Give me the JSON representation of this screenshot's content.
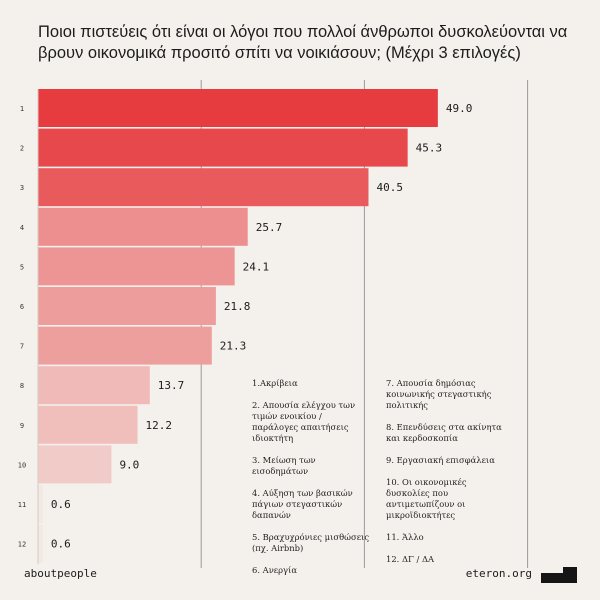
{
  "title": "Ποιοι πιστεύεις ότι είναι οι λόγοι που πολλοί άνθρωποι δυσκολεύονται να βρουν οικονομικά προσιτό σπίτι να νοικιάσουν; (Μέχρι 3 επιλογές)",
  "chart_data": {
    "type": "bar",
    "orientation": "horizontal",
    "categories": [
      "1",
      "2",
      "3",
      "4",
      "5",
      "6",
      "7",
      "8",
      "9",
      "10",
      "11",
      "12"
    ],
    "values": [
      49.0,
      45.3,
      40.5,
      25.7,
      24.1,
      21.8,
      21.3,
      13.7,
      12.2,
      9.0,
      0.6,
      0.6
    ],
    "value_labels": [
      "49.0",
      "45.3",
      "40.5",
      "25.7",
      "24.1",
      "21.8",
      "21.3",
      "13.7",
      "12.2",
      "9.0",
      "0.6",
      "0.6"
    ],
    "xlim": [
      0,
      60
    ],
    "grid": true,
    "colors": {
      "max": "#e63b3f",
      "min": "#f3e9e4"
    },
    "legend_placement": "bottom-right"
  },
  "legend": {
    "col1": [
      "1.Ακρίβεια",
      "2. Απουσία ελέγχου των τιμών ενοικίου / παράλογες απαιτήσεις ιδιοκτήτη",
      "3. Μείωση των εισοδημάτων",
      "4. Αύξηση των βασικών πάγιων στεγαστικών δαπανών",
      "5. Βραχυχρόνιες μισθώσεις (πχ. Airbnb)",
      "6. Ανεργία"
    ],
    "col2": [
      "7. Απουσία δημόσιας κοινωνικής στεγαστικής πολιτικής",
      "8. Επενδύσεις στα ακίνητα και κερδοσκοπία",
      "9. Εργασιακή επισφάλεια",
      "10. Οι οικονομικές δυσκολίες που αντιμετωπίζουν οι μικροϊδιοκτήτες",
      "11. Άλλο",
      "12. ΔΓ / ΔΑ"
    ]
  },
  "footer": {
    "left": "aboutpeople",
    "right": "eteron.org"
  },
  "logo_icon": "eteron-logo-icon"
}
